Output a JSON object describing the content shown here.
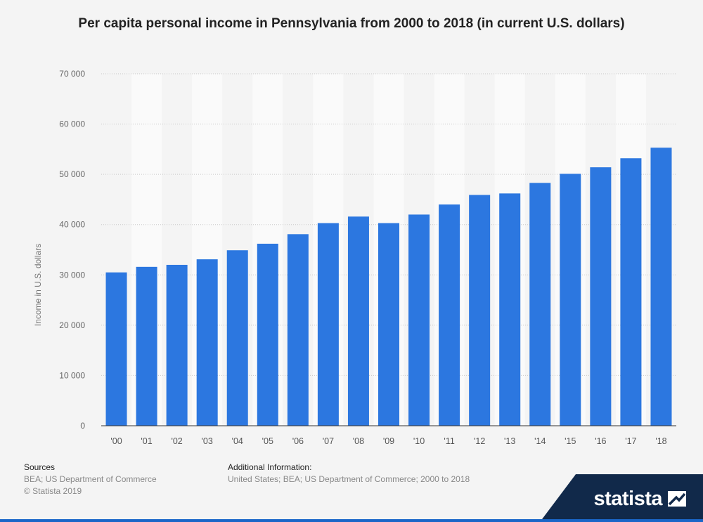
{
  "chart_data": {
    "type": "bar",
    "title": "Per capita personal income in Pennsylvania from 2000 to 2018 (in current U.S. dollars)",
    "ylabel": "Income in U.S. dollars",
    "xlabel": "",
    "categories": [
      "'00",
      "'01",
      "'02",
      "'03",
      "'04",
      "'05",
      "'06",
      "'07",
      "'08",
      "'09",
      "'10",
      "'11",
      "'12",
      "'13",
      "'14",
      "'15",
      "'16",
      "'17",
      "'18"
    ],
    "values": [
      30500,
      31600,
      32000,
      33100,
      34900,
      36200,
      38100,
      40300,
      41600,
      40300,
      42000,
      44000,
      45900,
      46200,
      48300,
      50100,
      51400,
      53200,
      55300
    ],
    "ylim": [
      0,
      70000
    ],
    "yticks": [
      0,
      10000,
      20000,
      30000,
      40000,
      50000,
      60000,
      70000
    ],
    "ytick_labels": [
      "0",
      "10 000",
      "20 000",
      "30 000",
      "40 000",
      "50 000",
      "60 000",
      "70 000"
    ],
    "grid": true,
    "bar_color": "#2c77e0"
  },
  "footer": {
    "sources_heading": "Sources",
    "sources_line1": "BEA; US Department of Commerce",
    "sources_line2": "© Statista 2019",
    "additional_heading": "Additional Information:",
    "additional_line": "United States; BEA; US Department of Commerce; 2000 to 2018"
  },
  "brand": {
    "name": "statista",
    "color": "#11294a"
  }
}
